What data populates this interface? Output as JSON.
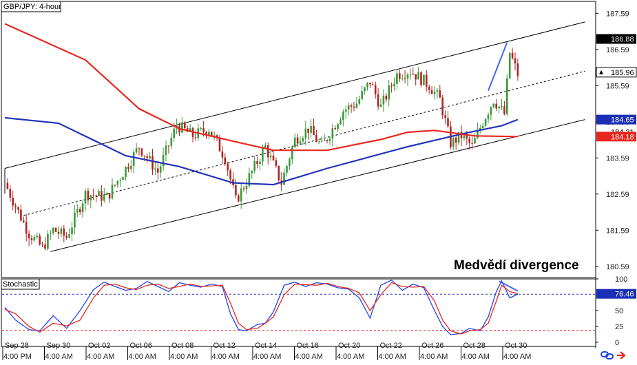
{
  "header": {
    "symbol_label": "GBP/JPY: 4-hour",
    "indicator_label": "Stochastic",
    "annotation": "Medvědí divergence"
  },
  "colors": {
    "bull": "#3a9a3a",
    "bear": "#b22222",
    "ma_fast": "#2233bb",
    "ma_slow": "#e8261e",
    "channel": "#000000",
    "divergence": "#4466ee",
    "stoch_k": "#2244ee",
    "stoch_d": "#e8261e"
  },
  "icons": [
    "link-icon",
    "arrow-right-icon"
  ],
  "chart_data": [
    {
      "type": "candlestick",
      "title": "GBP/JPY: 4-hour",
      "ylim": [
        180.3,
        187.9
      ],
      "y_ticks": [
        "187.59",
        "186.59",
        "185.59",
        "184.59",
        "183.59",
        "182.59",
        "181.59",
        "180.59"
      ],
      "x_labels": [
        "Sep 28",
        "Sep 30",
        "Oct 02",
        "Oct 06",
        "Oct 08",
        "Oct 12",
        "Oct 14",
        "Oct 16",
        "Oct 20",
        "Oct 22",
        "Oct 26",
        "Oct 28",
        "Oct 30"
      ],
      "time_labels": [
        "4:00 PM",
        "4:00 AM",
        "4:00 AM",
        "4:00 AM",
        "4:00 AM",
        "4:00 AM",
        "4:00 AM",
        "4:00 AM",
        "4:00 AM",
        "4:00 AM",
        "4:00 AM",
        "4:00 AM",
        "4:00 AM"
      ],
      "price_tags": [
        {
          "label": "186.88",
          "value": 186.88,
          "style": "dark"
        },
        {
          "label": "185.96",
          "value": 185.96,
          "style": "current"
        },
        {
          "label": "184.65",
          "value": 184.65,
          "style": "blue"
        },
        {
          "label": "184.31",
          "value": 184.31,
          "style": "faint"
        },
        {
          "label": "184.18",
          "value": 184.18,
          "style": "red"
        }
      ],
      "anchors": [
        [
          0,
          182.9
        ],
        [
          5,
          182.1
        ],
        [
          9,
          181.5
        ],
        [
          14,
          181.1
        ],
        [
          18,
          181.6
        ],
        [
          23,
          181.4
        ],
        [
          30,
          182.6
        ],
        [
          38,
          182.5
        ],
        [
          45,
          183.3
        ],
        [
          50,
          183.9
        ],
        [
          57,
          183.2
        ],
        [
          64,
          184.5
        ],
        [
          70,
          184.2
        ],
        [
          76,
          184.4
        ],
        [
          82,
          183.6
        ],
        [
          86,
          182.4
        ],
        [
          92,
          183.2
        ],
        [
          97,
          183.9
        ],
        [
          103,
          182.9
        ],
        [
          108,
          184.1
        ],
        [
          113,
          184.4
        ],
        [
          118,
          183.9
        ],
        [
          126,
          184.9
        ],
        [
          131,
          185.1
        ],
        [
          136,
          185.7
        ],
        [
          140,
          185.0
        ],
        [
          146,
          185.9
        ],
        [
          151,
          186.0
        ],
        [
          158,
          185.6
        ],
        [
          162,
          185.2
        ],
        [
          166,
          184.0
        ],
        [
          170,
          184.2
        ],
        [
          174,
          183.9
        ],
        [
          178,
          184.6
        ],
        [
          182,
          185.2
        ],
        [
          186,
          184.8
        ],
        [
          188,
          186.5
        ],
        [
          191,
          185.9
        ]
      ],
      "series": [
        {
          "name": "",
          "kind": "moving-average",
          "values": [
            [
              0,
              184.7
            ],
            [
              20,
              184.55
            ],
            [
              45,
              183.65
            ],
            [
              65,
              183.35
            ],
            [
              85,
              182.9
            ],
            [
              100,
              182.85
            ],
            [
              120,
              183.3
            ],
            [
              150,
              183.9
            ],
            [
              170,
              184.25
            ],
            [
              185,
              184.48
            ],
            [
              191,
              184.65
            ]
          ]
        },
        {
          "name": "",
          "kind": "moving-average",
          "values": [
            [
              0,
              187.3
            ],
            [
              30,
              186.3
            ],
            [
              50,
              184.95
            ],
            [
              65,
              184.4
            ],
            [
              85,
              184.05
            ],
            [
              100,
              183.8
            ],
            [
              120,
              183.8
            ],
            [
              140,
              184.1
            ],
            [
              150,
              184.3
            ],
            [
              160,
              184.35
            ],
            [
              175,
              184.2
            ],
            [
              191,
              184.18
            ]
          ]
        }
      ],
      "channel": {
        "upper": [
          [
            0,
            183.3
          ],
          [
            216,
            187.35
          ]
        ],
        "middle": [
          [
            7,
            182.0
          ],
          [
            216,
            185.99
          ]
        ],
        "lower": [
          [
            17,
            181.0
          ],
          [
            216,
            184.65
          ]
        ]
      },
      "divergence_line": [
        [
          180,
          185.45
        ],
        [
          187,
          186.78
        ]
      ]
    },
    {
      "type": "line",
      "title": "Stochastic",
      "ylim": [
        0,
        100
      ],
      "y_ticks": [
        "100",
        "75",
        "50",
        "25",
        "0"
      ],
      "levels": [
        80,
        20
      ],
      "price_tags": [
        {
          "label": "76.46",
          "value": 76.46
        }
      ],
      "series": [
        {
          "name": "",
          "values": [
            [
              0,
              55
            ],
            [
              4,
              35
            ],
            [
              9,
              20
            ],
            [
              13,
              18
            ],
            [
              18,
              42
            ],
            [
              23,
              22
            ],
            [
              28,
              50
            ],
            [
              33,
              83
            ],
            [
              37,
              95
            ],
            [
              41,
              88
            ],
            [
              45,
              82
            ],
            [
              49,
              85
            ],
            [
              53,
              96
            ],
            [
              57,
              88
            ],
            [
              61,
              80
            ],
            [
              65,
              94
            ],
            [
              69,
              90
            ],
            [
              73,
              87
            ],
            [
              77,
              92
            ],
            [
              81,
              88
            ],
            [
              84,
              45
            ],
            [
              87,
              20
            ],
            [
              90,
              18
            ],
            [
              94,
              28
            ],
            [
              97,
              30
            ],
            [
              100,
              48
            ],
            [
              104,
              90
            ],
            [
              108,
              95
            ],
            [
              112,
              88
            ],
            [
              116,
              94
            ],
            [
              120,
              92
            ],
            [
              124,
              86
            ],
            [
              128,
              84
            ],
            [
              132,
              70
            ],
            [
              136,
              38
            ],
            [
              140,
              90
            ],
            [
              144,
              98
            ],
            [
              148,
              82
            ],
            [
              152,
              92
            ],
            [
              156,
              86
            ],
            [
              160,
              50
            ],
            [
              163,
              25
            ],
            [
              166,
              12
            ],
            [
              170,
              14
            ],
            [
              173,
              22
            ],
            [
              177,
              18
            ],
            [
              180,
              40
            ],
            [
              183,
              80
            ],
            [
              185,
              97
            ],
            [
              188,
              70
            ],
            [
              191,
              76
            ]
          ]
        },
        {
          "name": "",
          "values": [
            [
              0,
              52
            ],
            [
              4,
              45
            ],
            [
              9,
              25
            ],
            [
              13,
              16
            ],
            [
              18,
              30
            ],
            [
              23,
              26
            ],
            [
              28,
              35
            ],
            [
              33,
              70
            ],
            [
              37,
              90
            ],
            [
              41,
              92
            ],
            [
              45,
              86
            ],
            [
              49,
              83
            ],
            [
              53,
              90
            ],
            [
              57,
              92
            ],
            [
              61,
              85
            ],
            [
              65,
              88
            ],
            [
              69,
              92
            ],
            [
              73,
              88
            ],
            [
              77,
              89
            ],
            [
              81,
              90
            ],
            [
              84,
              62
            ],
            [
              87,
              30
            ],
            [
              90,
              20
            ],
            [
              94,
              22
            ],
            [
              97,
              30
            ],
            [
              100,
              40
            ],
            [
              104,
              75
            ],
            [
              108,
              92
            ],
            [
              112,
              91
            ],
            [
              116,
              90
            ],
            [
              120,
              93
            ],
            [
              124,
              88
            ],
            [
              128,
              85
            ],
            [
              132,
              78
            ],
            [
              136,
              50
            ],
            [
              140,
              75
            ],
            [
              144,
              94
            ],
            [
              148,
              88
            ],
            [
              152,
              87
            ],
            [
              156,
              88
            ],
            [
              160,
              65
            ],
            [
              163,
              35
            ],
            [
              166,
              18
            ],
            [
              170,
              13
            ],
            [
              173,
              18
            ],
            [
              177,
              20
            ],
            [
              180,
              30
            ],
            [
              183,
              65
            ],
            [
              185,
              90
            ],
            [
              188,
              80
            ],
            [
              191,
              77
            ]
          ]
        }
      ],
      "divergence_line": [
        [
          184,
          96.5
        ],
        [
          191,
          81
        ]
      ]
    }
  ]
}
